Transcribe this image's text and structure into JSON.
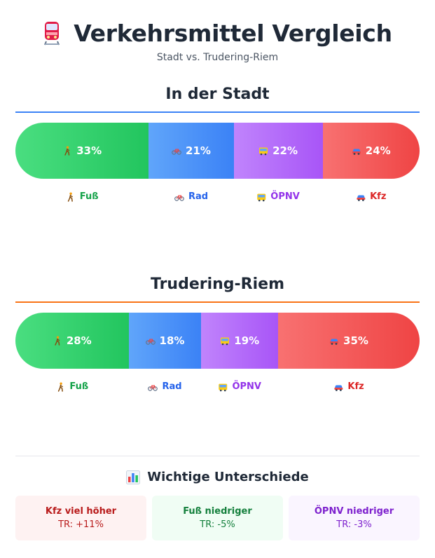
{
  "header": {
    "title": "Verkehrsmittel Vergleich",
    "subtitle": "Stadt vs. Trudering-Riem"
  },
  "colors": {
    "fuss": "#16a34a",
    "rad": "#2563eb",
    "oepnv": "#9333ea",
    "kfz": "#dc2626",
    "stadt_rule": "#3b82f6",
    "tr_rule": "#f97316"
  },
  "chart_data": [
    {
      "type": "bar",
      "title": "In der Stadt",
      "stacked": true,
      "orientation": "horizontal",
      "categories": [
        "Fuß",
        "Rad",
        "ÖPNV",
        "Kfz"
      ],
      "values": [
        33,
        21,
        22,
        24
      ],
      "value_labels": [
        "33%",
        "21%",
        "22%",
        "24%"
      ],
      "icons": [
        "walker-icon",
        "bicycle-icon",
        "bus-icon",
        "car-icon"
      ]
    },
    {
      "type": "bar",
      "title": "Trudering-Riem",
      "stacked": true,
      "orientation": "horizontal",
      "categories": [
        "Fuß",
        "Rad",
        "ÖPNV",
        "Kfz"
      ],
      "values": [
        28,
        18,
        19,
        35
      ],
      "value_labels": [
        "28%",
        "18%",
        "19%",
        "35%"
      ],
      "icons": [
        "walker-icon",
        "bicycle-icon",
        "bus-icon",
        "car-icon"
      ]
    }
  ],
  "summary": {
    "title": "Wichtige Unterschiede",
    "icon": "bar-chart-icon",
    "cards": [
      {
        "heading": "Kfz viel höher",
        "value": "TR: +11%",
        "color": "#b91c1c",
        "bg": "#fef2f2"
      },
      {
        "heading": "Fuß niedriger",
        "value": "TR: -5%",
        "color": "#15803d",
        "bg": "#f0fdf4"
      },
      {
        "heading": "ÖPNV niedriger",
        "value": "TR: -3%",
        "color": "#7e22ce",
        "bg": "#faf5ff"
      }
    ]
  }
}
